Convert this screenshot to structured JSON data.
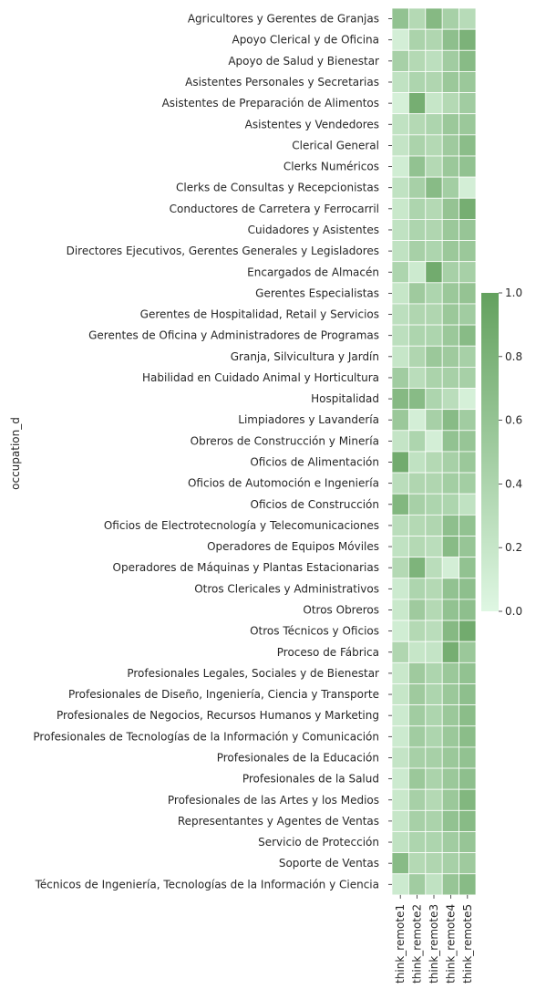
{
  "chart_data": {
    "type": "heatmap",
    "title": "",
    "ylabel": "occupation_d",
    "xlabel": "",
    "x": [
      "think_remote1",
      "think_remote2",
      "think_remote3",
      "think_remote4",
      "think_remote5"
    ],
    "y": [
      "Agricultores y Gerentes de Granjas",
      "Apoyo Clerical y de Oficina",
      "Apoyo de Salud y Bienestar",
      "Asistentes Personales y Secretarias",
      "Asistentes de Preparación de Alimentos",
      "Asistentes y Vendedores",
      "Clerical General",
      "Clerks Numéricos",
      "Clerks de Consultas y Recepcionistas",
      "Conductores de Carretera y Ferrocarril",
      "Cuidadores y Asistentes",
      "Directores Ejecutivos, Gerentes Generales y Legisladores",
      "Encargados de Almacén",
      "Gerentes Especialistas",
      "Gerentes de Hospitalidad, Retail y Servicios",
      "Gerentes de Oficina y Administradores de Programas",
      "Granja, Silvicultura y Jardín",
      "Habilidad en Cuidado Animal y Horticultura",
      "Hospitalidad",
      "Limpiadores y Lavandería",
      "Obreros de Construcción y Minería",
      "Oficios de Alimentación",
      "Oficios de Automoción e Ingeniería",
      "Oficios de Construcción",
      "Oficios de Electrotecnología y Telecomunicaciones",
      "Operadores de Equipos Móviles",
      "Operadores de Máquinas y Plantas Estacionarias",
      "Otros Clericales y Administrativos",
      "Otros Obreros",
      "Otros Técnicos y Oficios",
      "Proceso de Fábrica",
      "Profesionales Legales, Sociales y de Bienestar",
      "Profesionales de Diseño, Ingeniería, Ciencia y Transporte",
      "Profesionales de Negocios, Recursos Humanos y Marketing",
      "Profesionales de Tecnologías de la Información y Comunicación",
      "Profesionales de la Educación",
      "Profesionales de la Salud",
      "Profesionales de las Artes y los Medios",
      "Representantes y Agentes de Ventas",
      "Servicio de Protección",
      "Soporte de Ventas",
      "Técnicos de Ingeniería, Tecnologías de la Información y Ciencia"
    ],
    "values": [
      [
        0.62,
        0.35,
        0.72,
        0.45,
        0.32
      ],
      [
        0.1,
        0.42,
        0.38,
        0.65,
        0.8
      ],
      [
        0.45,
        0.35,
        0.28,
        0.5,
        0.7
      ],
      [
        0.25,
        0.4,
        0.38,
        0.55,
        0.55
      ],
      [
        0.08,
        0.85,
        0.2,
        0.35,
        0.5
      ],
      [
        0.25,
        0.35,
        0.4,
        0.55,
        0.55
      ],
      [
        0.22,
        0.42,
        0.35,
        0.52,
        0.68
      ],
      [
        0.12,
        0.62,
        0.35,
        0.55,
        0.62
      ],
      [
        0.25,
        0.45,
        0.7,
        0.48,
        0.1
      ],
      [
        0.18,
        0.4,
        0.35,
        0.6,
        0.85
      ],
      [
        0.25,
        0.4,
        0.38,
        0.55,
        0.58
      ],
      [
        0.25,
        0.45,
        0.4,
        0.55,
        0.55
      ],
      [
        0.4,
        0.15,
        0.88,
        0.45,
        0.45
      ],
      [
        0.2,
        0.52,
        0.4,
        0.55,
        0.6
      ],
      [
        0.28,
        0.38,
        0.38,
        0.55,
        0.5
      ],
      [
        0.28,
        0.4,
        0.4,
        0.55,
        0.7
      ],
      [
        0.2,
        0.38,
        0.55,
        0.52,
        0.45
      ],
      [
        0.5,
        0.3,
        0.42,
        0.45,
        0.45
      ],
      [
        0.72,
        0.7,
        0.4,
        0.3,
        0.08
      ],
      [
        0.55,
        0.1,
        0.45,
        0.7,
        0.5
      ],
      [
        0.22,
        0.4,
        0.1,
        0.62,
        0.58
      ],
      [
        0.88,
        0.25,
        0.35,
        0.45,
        0.55
      ],
      [
        0.3,
        0.38,
        0.38,
        0.48,
        0.48
      ],
      [
        0.75,
        0.45,
        0.4,
        0.4,
        0.25
      ],
      [
        0.3,
        0.35,
        0.38,
        0.65,
        0.62
      ],
      [
        0.25,
        0.35,
        0.3,
        0.7,
        0.58
      ],
      [
        0.35,
        0.78,
        0.3,
        0.1,
        0.62
      ],
      [
        0.15,
        0.4,
        0.35,
        0.62,
        0.65
      ],
      [
        0.18,
        0.52,
        0.35,
        0.62,
        0.65
      ],
      [
        0.12,
        0.35,
        0.3,
        0.72,
        0.88
      ],
      [
        0.38,
        0.2,
        0.22,
        0.85,
        0.55
      ],
      [
        0.18,
        0.52,
        0.4,
        0.55,
        0.62
      ],
      [
        0.2,
        0.52,
        0.4,
        0.55,
        0.65
      ],
      [
        0.15,
        0.5,
        0.4,
        0.55,
        0.68
      ],
      [
        0.15,
        0.5,
        0.4,
        0.55,
        0.68
      ],
      [
        0.22,
        0.45,
        0.45,
        0.55,
        0.62
      ],
      [
        0.15,
        0.55,
        0.42,
        0.55,
        0.65
      ],
      [
        0.18,
        0.45,
        0.35,
        0.55,
        0.75
      ],
      [
        0.2,
        0.45,
        0.42,
        0.62,
        0.7
      ],
      [
        0.25,
        0.4,
        0.4,
        0.5,
        0.58
      ],
      [
        0.7,
        0.35,
        0.38,
        0.45,
        0.52
      ],
      [
        0.15,
        0.5,
        0.25,
        0.58,
        0.7
      ]
    ],
    "colorbar": {
      "min": 0.0,
      "max": 1.0,
      "ticks": [
        0.0,
        0.2,
        0.4,
        0.6,
        0.8,
        1.0
      ],
      "tick_labels": [
        "0.0",
        "0.2",
        "0.4",
        "0.6",
        "0.8",
        "1.0"
      ],
      "color_low": "#dff7e3",
      "color_high": "#63a15e"
    },
    "grid": false,
    "cell_border_color": "#ffffff"
  }
}
